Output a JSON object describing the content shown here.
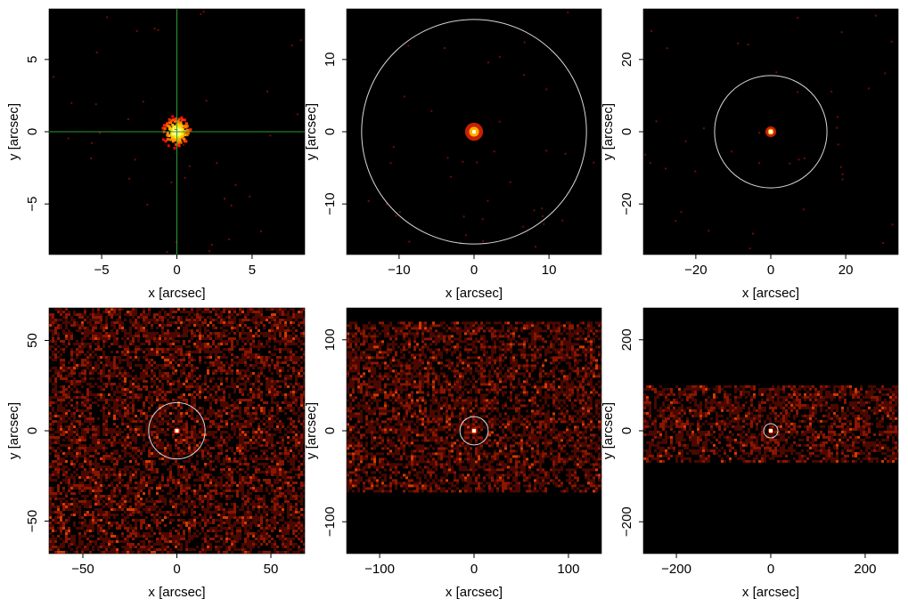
{
  "chart_data": [
    {
      "type": "heatmap",
      "xlabel": "x [arcsec]",
      "ylabel": "y [arcsec]",
      "xlim": [
        -8.5,
        8.5
      ],
      "ylim": [
        -8.5,
        8.5
      ],
      "xticks": [
        -5,
        0,
        5
      ],
      "yticks": [
        -5,
        0,
        5
      ],
      "xtick_labels": [
        "−5",
        "0",
        "5"
      ],
      "ytick_labels": [
        "−5",
        "0",
        "5"
      ],
      "grid": false,
      "crosshair": {
        "x": 0,
        "y": 0,
        "color": "#2e9a2e"
      },
      "source": {
        "x": 0,
        "y": 0,
        "extent": 0.9
      },
      "background": "sparse"
    },
    {
      "type": "heatmap",
      "xlabel": "x [arcsec]",
      "ylabel": "y [arcsec]",
      "xlim": [
        -17,
        17
      ],
      "ylim": [
        -17,
        17
      ],
      "xticks": [
        -10,
        0,
        10
      ],
      "yticks": [
        -10,
        0,
        10
      ],
      "xtick_labels": [
        "−10",
        "0",
        "10"
      ],
      "ytick_labels": [
        "−10",
        "0",
        "10"
      ],
      "grid": false,
      "circle": {
        "x": 0,
        "y": 0,
        "r": 15,
        "color": "#d9d9d9"
      },
      "source": {
        "x": 0,
        "y": 0,
        "extent": 1.0
      },
      "background": "sparse"
    },
    {
      "type": "heatmap",
      "xlabel": "x [arcsec]",
      "ylabel": "y [arcsec]",
      "xlim": [
        -34,
        34
      ],
      "ylim": [
        -34,
        34
      ],
      "xticks": [
        -20,
        0,
        20
      ],
      "yticks": [
        -20,
        0,
        20
      ],
      "xtick_labels": [
        "−20",
        "0",
        "20"
      ],
      "ytick_labels": [
        "−20",
        "0",
        "20"
      ],
      "grid": false,
      "circle": {
        "x": 0,
        "y": 0,
        "r": 15,
        "color": "#d9d9d9"
      },
      "source": {
        "x": 0,
        "y": 0,
        "extent": 1.2
      },
      "background": "sparse"
    },
    {
      "type": "heatmap",
      "xlabel": "x [arcsec]",
      "ylabel": "y [arcsec]",
      "xlim": [
        -68,
        68
      ],
      "ylim": [
        -68,
        68
      ],
      "xticks": [
        -50,
        0,
        50
      ],
      "yticks": [
        -50,
        0,
        50
      ],
      "xtick_labels": [
        "−50",
        "0",
        "50"
      ],
      "ytick_labels": [
        "−50",
        "0",
        "50"
      ],
      "grid": false,
      "circle": {
        "x": 0,
        "y": 0,
        "r": 15,
        "color": "#d9d9d9"
      },
      "source": {
        "x": 0,
        "y": 0,
        "extent": 1.5
      },
      "background": "band",
      "band_y": [
        -68,
        68
      ]
    },
    {
      "type": "heatmap",
      "xlabel": "x [arcsec]",
      "ylabel": "y [arcsec]",
      "xlim": [
        -135,
        135
      ],
      "ylim": [
        -135,
        135
      ],
      "xticks": [
        -100,
        0,
        100
      ],
      "yticks": [
        -100,
        0,
        100
      ],
      "xtick_labels": [
        "−100",
        "0",
        "100"
      ],
      "ytick_labels": [
        "−100",
        "0",
        "100"
      ],
      "grid": false,
      "circle": {
        "x": 0,
        "y": 0,
        "r": 15,
        "color": "#d9d9d9"
      },
      "source": {
        "x": 0,
        "y": 0,
        "extent": 3
      },
      "background": "band",
      "band_y": [
        -65,
        120
      ]
    },
    {
      "type": "heatmap",
      "xlabel": "x [arcsec]",
      "ylabel": "y [arcsec]",
      "xlim": [
        -270,
        270
      ],
      "ylim": [
        -270,
        270
      ],
      "xticks": [
        -200,
        0,
        200
      ],
      "yticks": [
        -200,
        0,
        200
      ],
      "xtick_labels": [
        "−200",
        "0",
        "200"
      ],
      "ytick_labels": [
        "−200",
        "0",
        "200"
      ],
      "grid": false,
      "circle": {
        "x": 0,
        "y": 0,
        "r": 15,
        "color": "#d9d9d9"
      },
      "source": {
        "x": 0,
        "y": 0,
        "extent": 5
      },
      "background": "band",
      "band_y": [
        -65,
        100
      ]
    }
  ]
}
